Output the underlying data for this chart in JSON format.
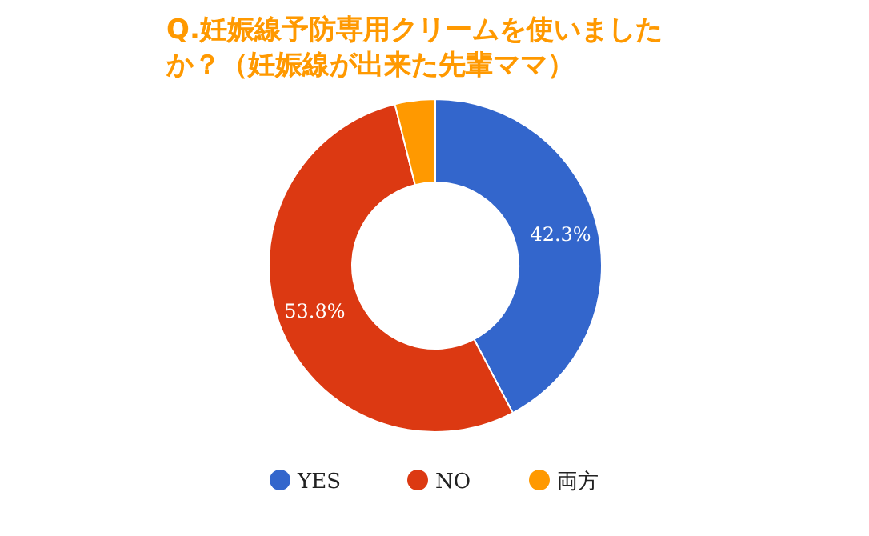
{
  "chart_data": {
    "type": "donut",
    "title": "Q.妊娠線予防専用クリームを使いましたか？（妊娠線が出来た先輩ママ）",
    "categories": [
      "YES",
      "NO",
      "両方"
    ],
    "values": [
      42.3,
      53.8,
      3.9
    ],
    "colors": [
      "#3366cc",
      "#dc3912",
      "#ff9900"
    ],
    "value_labels": [
      "42.3%",
      "53.8%",
      null
    ],
    "legend": "bottom"
  }
}
